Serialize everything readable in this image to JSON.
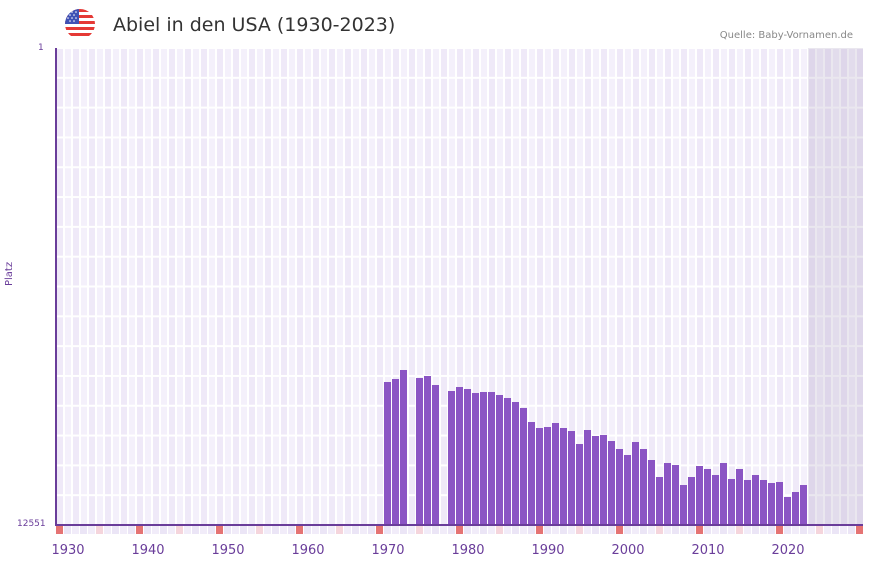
{
  "header": {
    "title": "Abiel in den USA (1930-2023)",
    "source": "Quelle: Baby-Vornamen.de",
    "flag_icon": "us-flag-icon"
  },
  "colors": {
    "bar": "#8b55c4",
    "axis": "#6a3d9a",
    "grid_bg_a": "#efe9f8",
    "grid_bg_b": "#f4f0fb",
    "marker_decade": "#e57373",
    "marker_half": "#f5d5dc",
    "future_shade": "#e3dfec"
  },
  "chart_data": {
    "type": "bar",
    "title": "Abiel in den USA (1930-2023)",
    "xlabel": "",
    "ylabel": "Platz",
    "ylim": [
      12551,
      1
    ],
    "y_inverted": true,
    "y_ticks": [
      "1",
      "12551"
    ],
    "x_ticks": [
      "1930",
      "1940",
      "1950",
      "1960",
      "1970",
      "1980",
      "1990",
      "2000",
      "2010",
      "2020"
    ],
    "grid": true,
    "legend": null,
    "categories": [
      1970,
      1971,
      1972,
      1974,
      1975,
      1976,
      1978,
      1979,
      1980,
      1981,
      1982,
      1983,
      1984,
      1985,
      1986,
      1987,
      1988,
      1989,
      1990,
      1991,
      1992,
      1993,
      1994,
      1995,
      1996,
      1997,
      1998,
      1999,
      2000,
      2001,
      2002,
      2003,
      2004,
      2005,
      2006,
      2007,
      2008,
      2009,
      2010,
      2011,
      2012,
      2013,
      2014,
      2015,
      2016,
      2017,
      2018,
      2019,
      2020,
      2021,
      2022
    ],
    "values": [
      8800,
      8720,
      8480,
      8690,
      8640,
      8870,
      9030,
      8930,
      8980,
      9080,
      9060,
      9060,
      9140,
      9220,
      9320,
      9480,
      9850,
      10010,
      9960,
      9880,
      10010,
      10090,
      10430,
      10040,
      10220,
      10170,
      10330,
      10540,
      10720,
      10380,
      10560,
      10830,
      11280,
      10930,
      10960,
      11490,
      11280,
      10990,
      11070,
      11230,
      10910,
      11330,
      11070,
      11380,
      11230,
      11380,
      11440,
      11410,
      11810,
      11670,
      11490
    ],
    "source": "Quelle: Baby-Vornamen.de"
  },
  "axis": {
    "ylabel": "Platz",
    "y_top": "1",
    "y_bottom": "12551",
    "x_labels": [
      "1930",
      "1940",
      "1950",
      "1960",
      "1970",
      "1980",
      "1990",
      "2000",
      "2010",
      "2020"
    ]
  }
}
